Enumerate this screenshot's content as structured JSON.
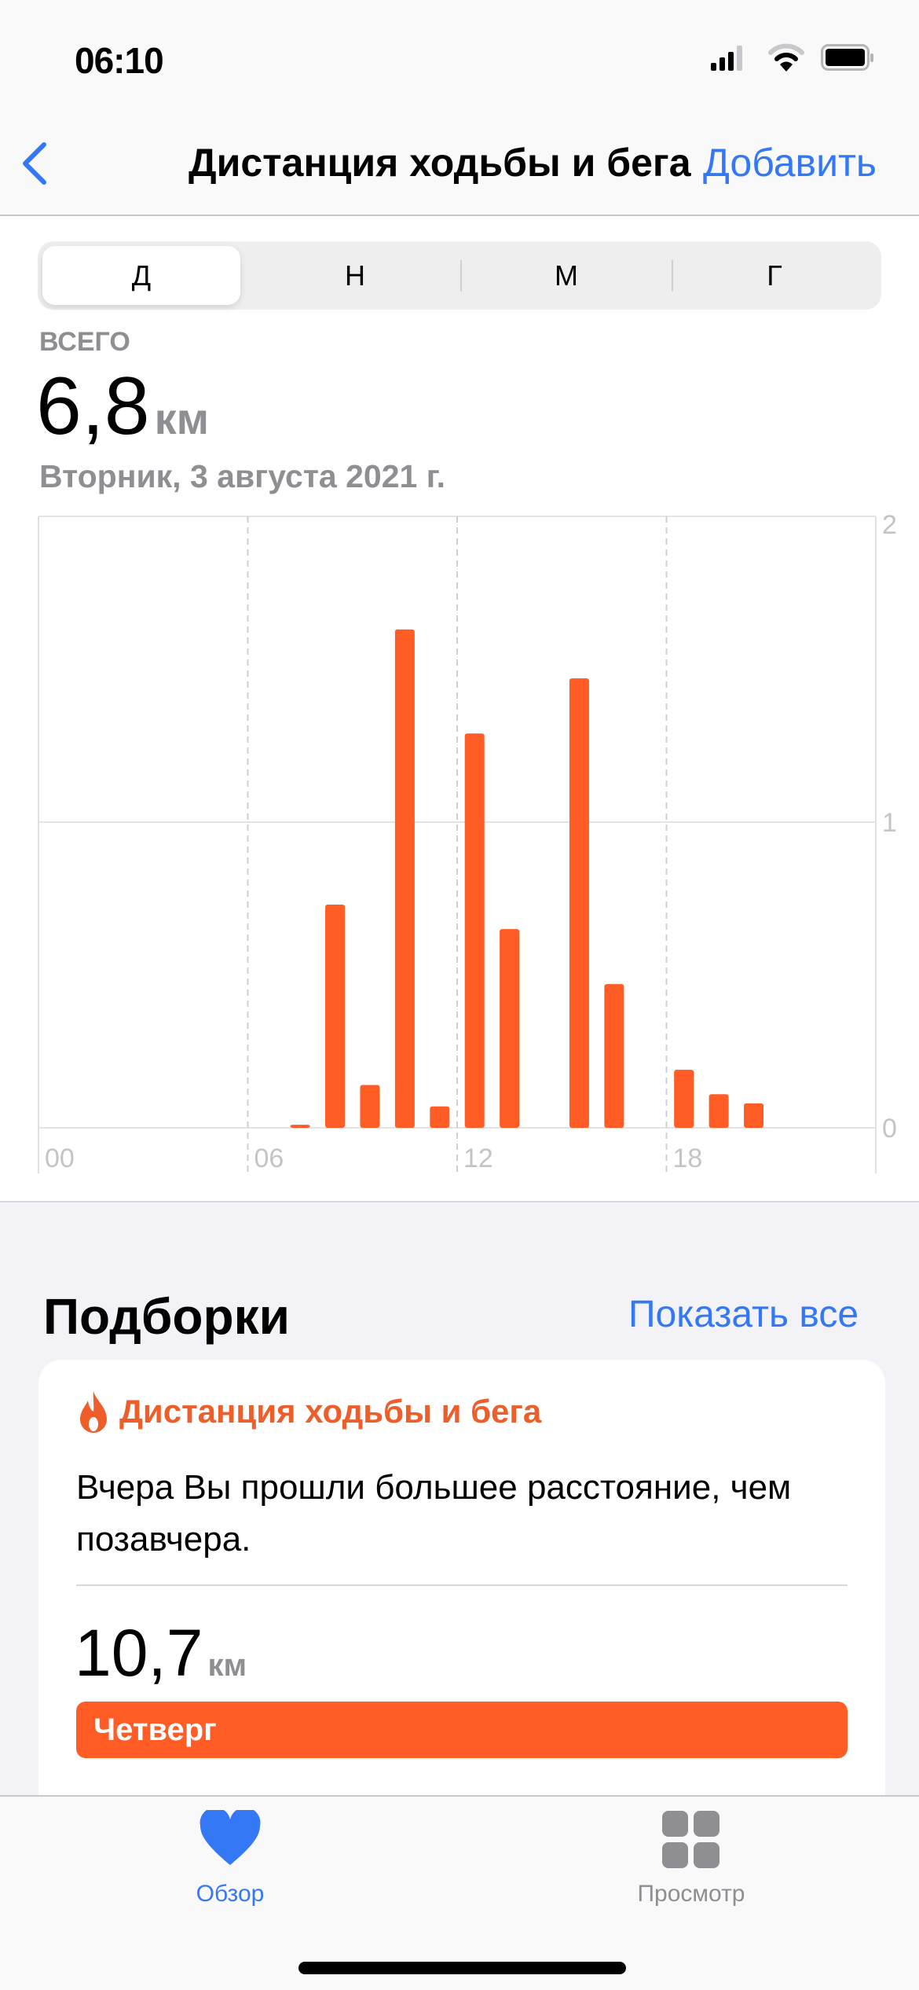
{
  "status_bar": {
    "time": "06:10",
    "icons": [
      "cellular-signal-icon",
      "wifi-icon",
      "battery-icon"
    ]
  },
  "nav": {
    "back_icon": "chevron-left-icon",
    "title": "Дистанция ходьбы и бега",
    "add_label": "Добавить"
  },
  "segments": [
    {
      "label": "Д",
      "selected": true
    },
    {
      "label": "Н"
    },
    {
      "label": "М"
    },
    {
      "label": "Г"
    }
  ],
  "summary": {
    "label": "ВСЕГО",
    "value": "6,8",
    "unit": "км",
    "date": "Вторник, 3 августа 2021 г."
  },
  "colors": {
    "accent": "#3478f6",
    "bar": "#ff5c26",
    "highlight_title": "#ed5e2b"
  },
  "chart_data": {
    "type": "bar",
    "x": [
      7,
      8,
      9,
      10,
      11,
      12,
      13,
      15,
      16,
      18,
      19,
      20
    ],
    "values": [
      0.01,
      0.73,
      0.14,
      1.63,
      0.07,
      1.29,
      0.65,
      1.47,
      0.47,
      0.19,
      0.11,
      0.08
    ],
    "xlim": [
      0,
      24
    ],
    "ylim": [
      0,
      2
    ],
    "xticks": [
      "00",
      "06",
      "12",
      "18"
    ],
    "yticks": [
      "0",
      "1",
      "2"
    ],
    "grid": true
  },
  "highlights": {
    "title": "Подборки",
    "show_all": "Показать все",
    "card": {
      "icon": "flame-icon",
      "title": "Дистанция ходьбы и бега",
      "text": "Вчера Вы прошли большее расстояние, чем позавчера.",
      "value": "10,7",
      "unit": "км",
      "bar_label": "Четверг"
    }
  },
  "tabbar": [
    {
      "label": "Обзор",
      "icon": "heart-icon",
      "active": true
    },
    {
      "label": "Просмотр",
      "icon": "grid-icon"
    }
  ]
}
